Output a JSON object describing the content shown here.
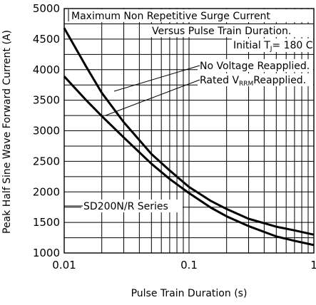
{
  "chart_data": {
    "type": "line",
    "xlabel": "Pulse Train Duration (s)",
    "ylabel": "Peak Half Sine Wave Forward Current (A)",
    "x_scale": "log",
    "xlim": [
      0.01,
      1
    ],
    "ylim": [
      1000,
      5000
    ],
    "x_ticks": [
      "0.01",
      "0.1",
      "1"
    ],
    "y_ticks": [
      "1000",
      "1500",
      "2000",
      "2500",
      "3000",
      "3500",
      "4000",
      "4500",
      "5000"
    ],
    "grid": true,
    "annotations": {
      "title_line1": "Maximum Non Repetitive Surge Current",
      "title_line2": "Versus Pulse Train Duration.",
      "cond_prefix": "Initial T",
      "cond_sub": "J",
      "cond_suffix": "= 180 C",
      "no_voltage": "No Voltage Reapplied.",
      "rated_prefix": "Rated V",
      "rated_sub": "RRM",
      "rated_suffix": "Reapplied.",
      "series_label": "SD200N/R Series"
    },
    "series": [
      {
        "x": [
          0.01,
          0.015,
          0.02,
          0.03,
          0.05,
          0.07,
          0.1,
          0.15,
          0.2,
          0.3,
          0.5,
          0.7,
          1
        ],
        "y": [
          4680,
          4050,
          3620,
          3140,
          2620,
          2350,
          2080,
          1850,
          1720,
          1560,
          1430,
          1370,
          1300
        ]
      },
      {
        "x": [
          0.01,
          0.015,
          0.02,
          0.03,
          0.05,
          0.07,
          0.1,
          0.15,
          0.2,
          0.3,
          0.5,
          0.7,
          1
        ],
        "y": [
          3890,
          3500,
          3240,
          2890,
          2460,
          2210,
          1980,
          1740,
          1600,
          1440,
          1270,
          1200,
          1130
        ]
      }
    ]
  }
}
